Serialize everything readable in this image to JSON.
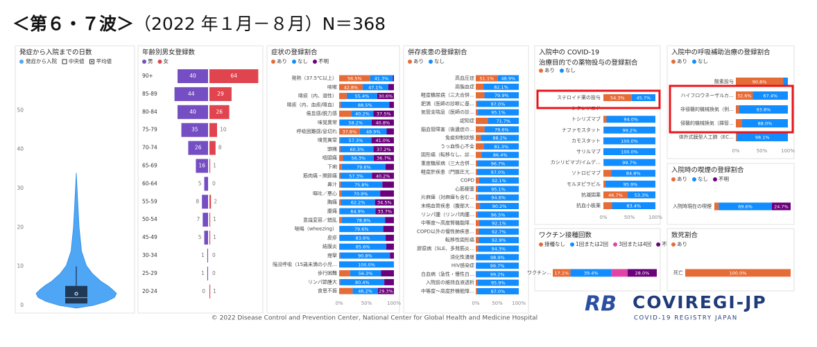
{
  "header": {
    "title_bold": "＜第６・７波＞",
    "title_rest": "（2022 年１月－８月）N＝368"
  },
  "footer": {
    "copyright": "© 2022 Disease Control and Prevention Center, National Center for Global Health and Medicine Hospital"
  },
  "logo": {
    "mark": "RB",
    "name": "COVIREGI-JP",
    "tagline": "COVID-19 REGISTRY JAPAN"
  },
  "chart_data": [
    {
      "type": "violin",
      "title": "発症から入院までの日数",
      "legend": [
        "発症から入院",
        "中央値",
        "平均値"
      ],
      "color": "#4ea6f5",
      "ylim": [
        0,
        60
      ],
      "yticks": [
        0,
        10,
        20,
        30,
        40,
        50
      ],
      "q1": 0.5,
      "median": 2,
      "mean": 3,
      "q3": 5,
      "whisker_high": 10,
      "max": 34
    },
    {
      "type": "pyramid",
      "title": "年齢別男女登録数",
      "categories": [
        "90+",
        "85-89",
        "80-84",
        "75-79",
        "70-74",
        "65-69",
        "60-64",
        "55-59",
        "50-54",
        "45-49",
        "30-34",
        "25-29",
        "20-24"
      ],
      "series": [
        {
          "name": "男",
          "color": "#744ec2",
          "values": [
            40,
            44,
            40,
            35,
            26,
            16,
            5,
            8,
            7,
            5,
            1,
            1,
            0
          ]
        },
        {
          "name": "女",
          "color": "#e0444f",
          "values": [
            64,
            29,
            26,
            10,
            8,
            1,
            0,
            2,
            1,
            1,
            0,
            0,
            1
          ]
        }
      ],
      "xlim": [
        0,
        70
      ]
    },
    {
      "type": "stacked_bar_h",
      "title": "症状の登録割合",
      "categories": [
        "発熱（37.5℃以上）",
        "咳嗽",
        "喀痰（内、湿性）",
        "喀痰（内、血痰/喀血）",
        "倦怠感/脱力感",
        "味覚異常",
        "呼吸困難感/息切れ",
        "嗅覚異常",
        "頭痛",
        "咽頭痛",
        "下痢",
        "筋肉痛・関節痛",
        "鼻汁",
        "嘔吐／悪心",
        "胸痛",
        "腹痛",
        "意識変容／錯乱",
        "喘鳴（wheezing）",
        "皮疹",
        "結膜炎",
        "痙攣",
        "陥没呼吸（15歳未満の小児…",
        "歩行困難",
        "リンパ節腫大",
        "食思不振"
      ],
      "series": [
        {
          "name": "あり",
          "color": "#e66c37",
          "values": [
            56.5,
            42.8,
            14.0,
            3.0,
            22.3,
            1.0,
            37.8,
            1.7,
            2.5,
            7.0,
            5.0,
            2.5,
            3.0,
            4.0,
            3.3,
            1.4,
            5.0,
            1.0,
            1.0,
            0.5,
            2.0,
            0,
            20.0,
            2.0,
            24.5
          ],
          "value_labels": [
            "56.5%",
            "42.8%",
            null,
            null,
            null,
            null,
            "37.8%",
            null,
            null,
            null,
            null,
            null,
            null,
            null,
            null,
            null,
            null,
            null,
            null,
            null,
            null,
            null,
            null,
            null,
            null
          ]
        },
        {
          "name": "なし",
          "color": "#118dff",
          "values": [
            41.3,
            47.1,
            55.4,
            88.5,
            40.2,
            58.2,
            48.9,
            57.3,
            60.3,
            56.3,
            79.6,
            57.3,
            75.8,
            70.9,
            62.2,
            64.9,
            78.8,
            79.6,
            83.9,
            85.6,
            90.8,
            100.0,
            56.3,
            80.4,
            46.2
          ],
          "value_labels": [
            "41.3%",
            "47.1%",
            "55.4%",
            "88.5%",
            "40.2%",
            "58.2%",
            "48.9%",
            "57.3%",
            "60.3%",
            "56.3%",
            "79.6%",
            "57.3%",
            "75.8%",
            "70.9%",
            "62.2%",
            "64.9%",
            "78.8%",
            "79.6%",
            "83.9%",
            "85.6%",
            "90.8%",
            "100.0%",
            "56.3%",
            "80.4%",
            "46.2%"
          ]
        },
        {
          "name": "不明",
          "color": "#6b007b",
          "values": [
            2.2,
            10.1,
            30.6,
            8.5,
            37.5,
            40.8,
            13.3,
            41.0,
            37.2,
            36.7,
            15.4,
            40.2,
            21.2,
            25.1,
            34.5,
            33.7,
            16.2,
            19.4,
            15.1,
            13.9,
            7.2,
            0,
            23.7,
            17.6,
            29.3
          ],
          "value_labels": [
            null,
            null,
            "30.6%",
            null,
            "37.5%",
            "40.8%",
            null,
            "41.0%",
            "37.2%",
            "36.7%",
            null,
            "40.2%",
            null,
            null,
            "34.5%",
            "33.7%",
            null,
            null,
            null,
            null,
            null,
            null,
            null,
            null,
            "29.3%"
          ]
        }
      ],
      "xlim": [
        0,
        100
      ],
      "xticks": [
        {
          "value": 0,
          "label": "0%"
        },
        {
          "value": 50,
          "label": "50%"
        },
        {
          "value": 100,
          "label": "100%"
        }
      ]
    },
    {
      "type": "stacked_bar_h",
      "title": "併存疾患の登録割合",
      "categories": [
        "高血圧症",
        "高脂血症",
        "軽度糖尿病（三大合併…",
        "肥満（医師の診断に基…",
        "気管支喘息（医師の診…",
        "認知症",
        "脳血管障害（後遺症の…",
        "免疫抑制状態",
        "うっ血性心不全",
        "固形癌（転移なし、診…",
        "重度糖尿病（三大合併…",
        "軽度肝疾患（門脈圧亢…",
        "COPD",
        "心筋梗塞",
        "片麻痺（対麻痺も含む…",
        "末梢血管疾患（腹部大…",
        "リンパ腫（リンパ肉腫…",
        "中等度～高度腎機能障…",
        "COPD以外の慢性肺疾患…",
        "転移性固形癌",
        "膠原病（SLE、多発筋炎…",
        "消化性潰瘍",
        "HIV感染症",
        "白血病（急性・慢性白…",
        "入院前の維持血液透析",
        "中等度～高度肝機能障…"
      ],
      "series": [
        {
          "name": "あり",
          "color": "#e66c37",
          "values": [
            51.1,
            17.9,
            20.1,
            3.0,
            4.9,
            28.3,
            20.4,
            11.8,
            18.7,
            13.6,
            3.3,
            3.0,
            7.9,
            4.9,
            5.4,
            9.8,
            3.5,
            7.9,
            7.3,
            7.1,
            5.7,
            1.1,
            0.3,
            0.8,
            4.1,
            3.0
          ],
          "value_labels": [
            "51.1%",
            null,
            null,
            null,
            null,
            null,
            null,
            null,
            null,
            null,
            null,
            null,
            null,
            null,
            null,
            null,
            null,
            null,
            null,
            null,
            null,
            null,
            null,
            null,
            null,
            null
          ]
        },
        {
          "name": "なし",
          "color": "#118dff",
          "values": [
            48.9,
            82.1,
            79.9,
            97.0,
            95.1,
            71.7,
            79.6,
            88.2,
            81.3,
            86.4,
            96.7,
            97.0,
            92.1,
            95.1,
            94.6,
            90.2,
            96.5,
            92.1,
            92.7,
            92.9,
            94.3,
            98.9,
            99.7,
            99.2,
            95.9,
            97.0
          ],
          "value_labels": [
            "48.9%",
            "82.1%",
            "79.9%",
            "97.0%",
            "95.1%",
            "71.7%",
            "79.6%",
            "88.2%",
            "81.3%",
            "86.4%",
            "96.7%",
            "97.0%",
            "92.1%",
            "95.1%",
            "94.6%",
            "90.2%",
            "96.5%",
            "92.1%",
            "92.7%",
            "92.9%",
            "94.3%",
            "98.9%",
            "99.7%",
            "99.2%",
            "95.9%",
            "97.0%"
          ]
        }
      ],
      "xlim": [
        0,
        100
      ],
      "xticks": [
        {
          "value": 0,
          "label": "0%"
        },
        {
          "value": 50,
          "label": "50%"
        },
        {
          "value": 100,
          "label": "100%"
        }
      ]
    },
    {
      "type": "stacked_bar_h",
      "title": "入院中の COVID-19",
      "subtitle": "治療目的での薬物投与の登録割合",
      "categories": [
        "ステロイド薬の投与",
        "シクレソニド",
        "トシリズマブ",
        "ナファモスタット",
        "カモスタット",
        "サリルマブ",
        "カシリビマブ/イムデ…",
        "ソトロビマブ",
        "モルヌピラビル",
        "抗凝固薬",
        "抗血小板薬"
      ],
      "series": [
        {
          "name": "あり",
          "color": "#e66c37",
          "values": [
            54.3,
            null,
            6.0,
            0.8,
            0,
            0,
            0.3,
            15.2,
            4.1,
            46.7,
            16.6
          ],
          "value_labels": [
            "54.3%",
            null,
            null,
            null,
            null,
            null,
            null,
            null,
            null,
            "46.7%",
            null
          ]
        },
        {
          "name": "なし",
          "color": "#118dff",
          "values": [
            45.7,
            null,
            94.0,
            99.2,
            100.0,
            100.0,
            99.7,
            84.8,
            95.9,
            53.3,
            83.4
          ],
          "value_labels": [
            "45.7%",
            null,
            "94.0%",
            "99.2%",
            "100.0%",
            "100.0%",
            "99.7%",
            "84.8%",
            "95.9%",
            "53.3%",
            "83.4%"
          ]
        }
      ],
      "xlim": [
        0,
        100
      ],
      "xticks": [
        {
          "value": 0,
          "label": "0%"
        },
        {
          "value": 50,
          "label": "50%"
        },
        {
          "value": 100,
          "label": "100%"
        }
      ]
    },
    {
      "type": "stacked_bar_h",
      "title": "入院中の呼吸補助治療の登録割合",
      "categories": [
        "酸素投与",
        "ハイフロウネーザルカ…",
        "非侵襲的機械換気（例…",
        "侵襲的機械換気（挿管…",
        "体外式膜型人工肺（EC…"
      ],
      "series": [
        {
          "name": "あり",
          "color": "#e66c37",
          "values": [
            90.8,
            32.6,
            6.2,
            12.0,
            1.9
          ],
          "value_labels": [
            "90.8%",
            "32.6%",
            null,
            null,
            null
          ]
        },
        {
          "name": "なし",
          "color": "#118dff",
          "values": [
            9.2,
            67.4,
            93.8,
            88.0,
            98.1
          ],
          "value_labels": [
            null,
            "67.4%",
            "93.8%",
            "88.0%",
            "98.1%"
          ]
        }
      ],
      "xlim": [
        0,
        100
      ],
      "xticks": [
        {
          "value": 0,
          "label": "0%"
        },
        {
          "value": 50,
          "label": "50%"
        },
        {
          "value": 100,
          "label": "100%"
        }
      ]
    },
    {
      "type": "stacked_bar_h",
      "title": "入院時の喫煙の登録割合",
      "categories": [
        "入院時現在の喫煙"
      ],
      "series": [
        {
          "name": "あり",
          "color": "#e66c37",
          "values": [
            5.7
          ],
          "value_labels": [
            null
          ]
        },
        {
          "name": "なし",
          "color": "#118dff",
          "values": [
            69.6
          ],
          "value_labels": [
            "69.6%"
          ]
        },
        {
          "name": "不明",
          "color": "#6b007b",
          "values": [
            24.7
          ],
          "value_labels": [
            "24.7%"
          ]
        }
      ],
      "xlim": [
        0,
        100
      ]
    },
    {
      "type": "stacked_bar_h",
      "title": "ワクチン接種回数",
      "categories": [
        "ワクチン…"
      ],
      "series": [
        {
          "name": "接種なし",
          "color": "#e66c37",
          "values": [
            17.1
          ],
          "value_labels": [
            "17.1%"
          ]
        },
        {
          "name": "1回または2回",
          "color": "#118dff",
          "values": [
            39.4
          ],
          "value_labels": [
            "39.4%"
          ]
        },
        {
          "name": "3回または4回",
          "color": "#e044a7",
          "values": [
            15.5
          ],
          "value_labels": [
            null
          ]
        },
        {
          "name": "不明",
          "color": "#6b007b",
          "values": [
            28.0
          ],
          "value_labels": [
            "28.0%"
          ]
        }
      ],
      "xlim": [
        0,
        100
      ]
    },
    {
      "type": "stacked_bar_h",
      "title": "致死割合",
      "categories": [
        "死亡"
      ],
      "series": [
        {
          "name": "あり",
          "color": "#e66c37",
          "values": [
            100.0
          ],
          "value_labels": [
            "100.0%"
          ]
        }
      ],
      "xlim": [
        0,
        100
      ]
    }
  ]
}
